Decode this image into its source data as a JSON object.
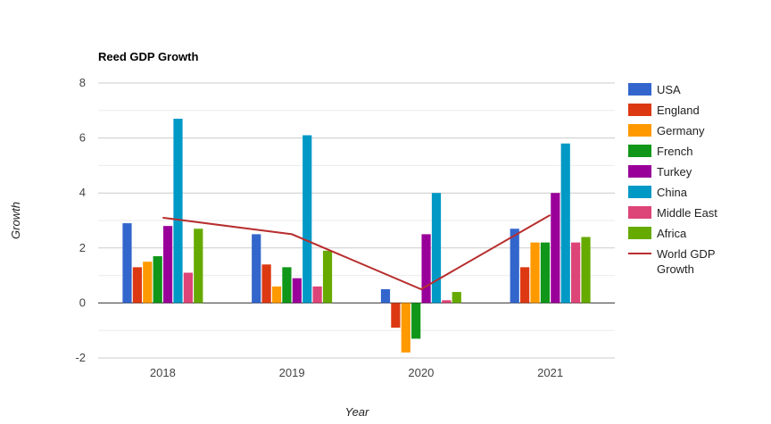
{
  "chart_data": {
    "type": "bar",
    "title": "Reed GDP Growth",
    "xlabel": "Year",
    "ylabel": "Growth",
    "categories": [
      "2018",
      "2019",
      "2020",
      "2021"
    ],
    "ylim": [
      -2,
      8
    ],
    "yticks": [
      "-2",
      "0",
      "2",
      "4",
      "6",
      "8"
    ],
    "grid": true,
    "legend_position": "right",
    "series": [
      {
        "name": "USA",
        "color": "#3366cc",
        "values": [
          2.9,
          2.5,
          0.5,
          2.7
        ]
      },
      {
        "name": "England",
        "color": "#dc3912",
        "values": [
          1.3,
          1.4,
          -0.9,
          1.3
        ]
      },
      {
        "name": "Germany",
        "color": "#ff9900",
        "values": [
          1.5,
          0.6,
          -1.8,
          2.2
        ]
      },
      {
        "name": "French",
        "color": "#109618",
        "values": [
          1.7,
          1.3,
          -1.3,
          2.2
        ]
      },
      {
        "name": "Turkey",
        "color": "#990099",
        "values": [
          2.8,
          0.9,
          2.5,
          4.0
        ]
      },
      {
        "name": "China",
        "color": "#0099c6",
        "values": [
          6.7,
          6.1,
          4.0,
          5.8
        ]
      },
      {
        "name": "Middle East",
        "color": "#dd4477",
        "values": [
          1.1,
          0.6,
          0.1,
          2.2
        ]
      },
      {
        "name": "Africa",
        "color": "#66aa00",
        "values": [
          2.7,
          1.9,
          0.4,
          2.4
        ]
      }
    ],
    "line_series": [
      {
        "name": "World GDP Growth",
        "name_lines": [
          "World GDP",
          "Growth"
        ],
        "color": "#b82e2e",
        "values": [
          3.1,
          2.5,
          0.5,
          3.2
        ]
      }
    ]
  }
}
